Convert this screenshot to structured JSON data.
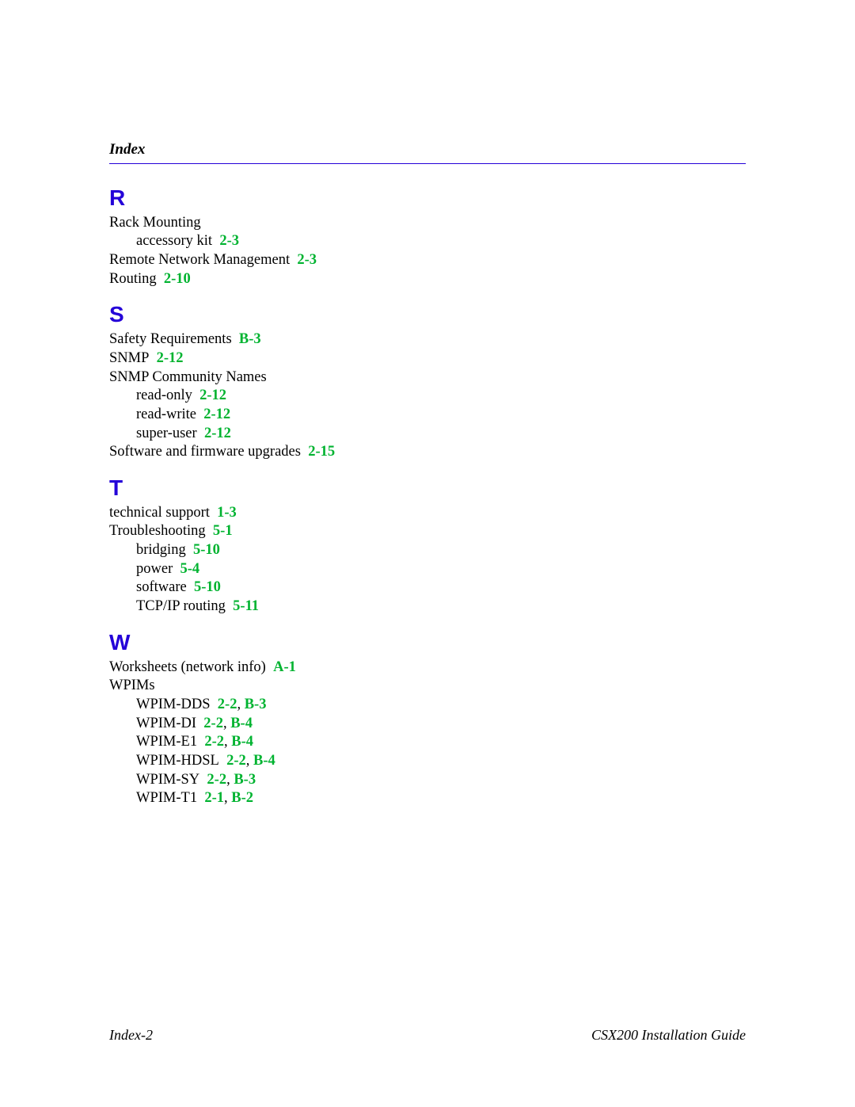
{
  "header": {
    "title": "Index"
  },
  "colors": {
    "letter": "#2400d8",
    "ref": "#00b330",
    "rule": "#2400d8",
    "text": "#000000"
  },
  "typography": {
    "body_family": "Times New Roman",
    "letter_family": "Arial",
    "body_size_pt": 14,
    "letter_size_pt": 21,
    "header_italic_bold": true,
    "ref_bold": true
  },
  "sections": [
    {
      "letter": "R",
      "entries": [
        {
          "text": "Rack Mounting",
          "refs": []
        },
        {
          "text": "accessory kit",
          "refs": [
            "2-3"
          ],
          "indent": 1
        },
        {
          "text": "Remote Network Management",
          "refs": [
            "2-3"
          ]
        },
        {
          "text": "Routing",
          "refs": [
            "2-10"
          ]
        }
      ]
    },
    {
      "letter": "S",
      "entries": [
        {
          "text": "Safety Requirements",
          "refs": [
            "B-3"
          ]
        },
        {
          "text": "SNMP",
          "refs": [
            "2-12"
          ]
        },
        {
          "text": "SNMP Community Names",
          "refs": []
        },
        {
          "text": "read-only",
          "refs": [
            "2-12"
          ],
          "indent": 1
        },
        {
          "text": "read-write",
          "refs": [
            "2-12"
          ],
          "indent": 1
        },
        {
          "text": "super-user",
          "refs": [
            "2-12"
          ],
          "indent": 1
        },
        {
          "text": "Software and firmware upgrades",
          "refs": [
            "2-15"
          ]
        }
      ]
    },
    {
      "letter": "T",
      "entries": [
        {
          "text": "technical support",
          "refs": [
            "1-3"
          ]
        },
        {
          "text": "Troubleshooting",
          "refs": [
            "5-1"
          ]
        },
        {
          "text": "bridging",
          "refs": [
            "5-10"
          ],
          "indent": 1
        },
        {
          "text": "power",
          "refs": [
            "5-4"
          ],
          "indent": 1
        },
        {
          "text": "software",
          "refs": [
            "5-10"
          ],
          "indent": 1
        },
        {
          "text": "TCP/IP routing",
          "refs": [
            "5-11"
          ],
          "indent": 1
        }
      ]
    },
    {
      "letter": "W",
      "entries": [
        {
          "text": "Worksheets (network info)",
          "refs": [
            "A-1"
          ]
        },
        {
          "text": "WPIMs",
          "refs": []
        },
        {
          "text": "WPIM-DDS",
          "refs": [
            "2-2",
            "B-3"
          ],
          "indent": 1
        },
        {
          "text": "WPIM-DI",
          "refs": [
            "2-2",
            "B-4"
          ],
          "indent": 1
        },
        {
          "text": "WPIM-E1",
          "refs": [
            "2-2",
            "B-4"
          ],
          "indent": 1
        },
        {
          "text": "WPIM-HDSL",
          "refs": [
            "2-2",
            "B-4"
          ],
          "indent": 1
        },
        {
          "text": "WPIM-SY",
          "refs": [
            "2-2",
            "B-3"
          ],
          "indent": 1
        },
        {
          "text": "WPIM-T1",
          "refs": [
            "2-1",
            "B-2"
          ],
          "indent": 1
        }
      ]
    }
  ],
  "footer": {
    "left": "Index-2",
    "right": "CSX200 Installation Guide"
  }
}
